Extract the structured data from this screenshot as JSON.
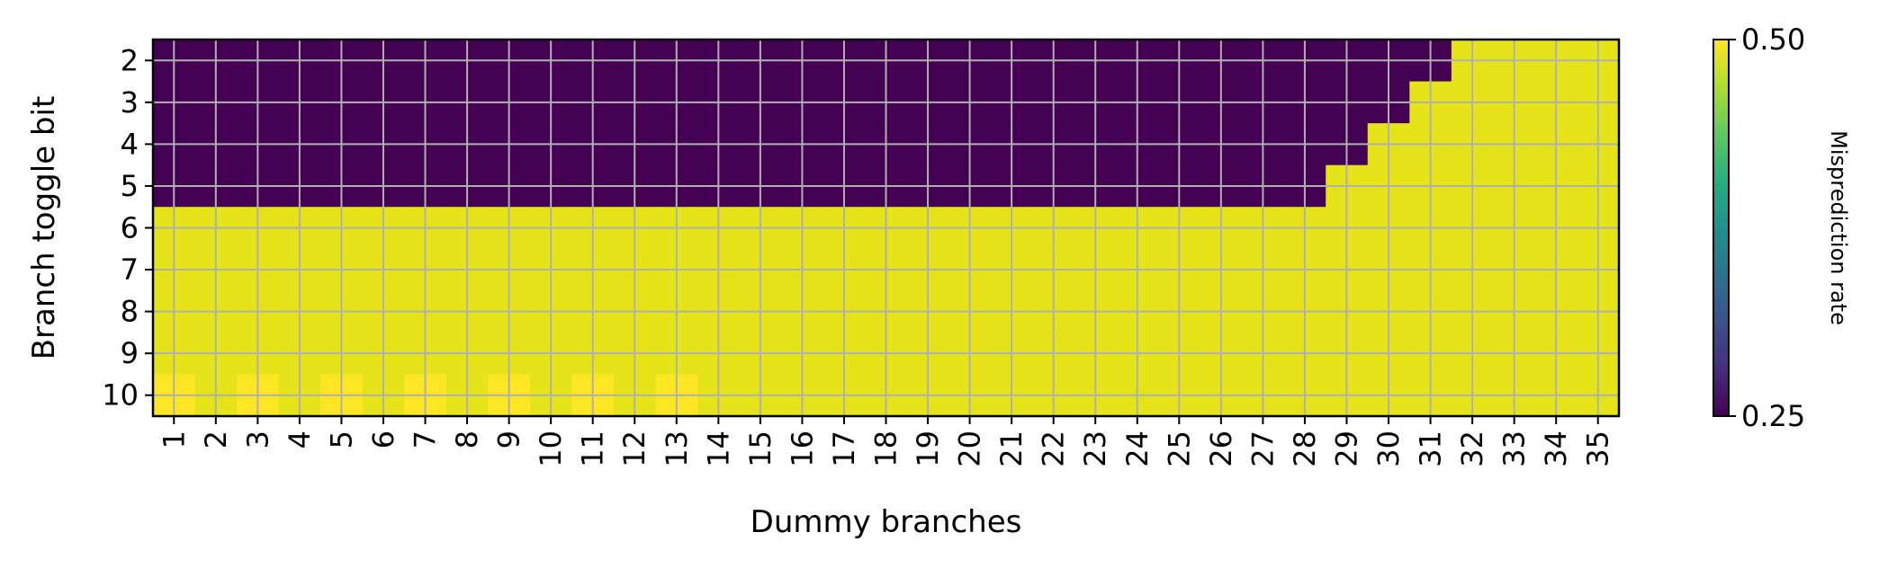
{
  "chart_data": {
    "type": "heatmap",
    "title": "",
    "xlabel": "Dummy branches",
    "ylabel": "Branch toggle bit",
    "x": [
      1,
      2,
      3,
      4,
      5,
      6,
      7,
      8,
      9,
      10,
      11,
      12,
      13,
      14,
      15,
      16,
      17,
      18,
      19,
      20,
      21,
      22,
      23,
      24,
      25,
      26,
      27,
      28,
      29,
      30,
      31,
      32,
      33,
      34,
      35
    ],
    "y": [
      2,
      3,
      4,
      5,
      6,
      7,
      8,
      9,
      10
    ],
    "z": [
      [
        0.25,
        0.25,
        0.25,
        0.25,
        0.25,
        0.25,
        0.25,
        0.25,
        0.25,
        0.25,
        0.25,
        0.25,
        0.25,
        0.25,
        0.25,
        0.25,
        0.25,
        0.25,
        0.25,
        0.25,
        0.25,
        0.25,
        0.25,
        0.25,
        0.25,
        0.25,
        0.25,
        0.25,
        0.25,
        0.25,
        0.25,
        0.5,
        0.5,
        0.5,
        0.5
      ],
      [
        0.25,
        0.25,
        0.25,
        0.25,
        0.25,
        0.25,
        0.25,
        0.25,
        0.25,
        0.25,
        0.25,
        0.25,
        0.25,
        0.25,
        0.25,
        0.25,
        0.25,
        0.25,
        0.25,
        0.25,
        0.25,
        0.25,
        0.25,
        0.25,
        0.25,
        0.25,
        0.25,
        0.25,
        0.25,
        0.25,
        0.5,
        0.5,
        0.5,
        0.5,
        0.5
      ],
      [
        0.25,
        0.25,
        0.25,
        0.25,
        0.25,
        0.25,
        0.25,
        0.25,
        0.25,
        0.25,
        0.25,
        0.25,
        0.25,
        0.25,
        0.25,
        0.25,
        0.25,
        0.25,
        0.25,
        0.25,
        0.25,
        0.25,
        0.25,
        0.25,
        0.25,
        0.25,
        0.25,
        0.25,
        0.25,
        0.5,
        0.5,
        0.5,
        0.5,
        0.5,
        0.5
      ],
      [
        0.25,
        0.25,
        0.25,
        0.25,
        0.25,
        0.25,
        0.25,
        0.25,
        0.25,
        0.25,
        0.25,
        0.25,
        0.25,
        0.25,
        0.25,
        0.25,
        0.25,
        0.25,
        0.25,
        0.25,
        0.25,
        0.25,
        0.25,
        0.25,
        0.25,
        0.25,
        0.25,
        0.25,
        0.5,
        0.5,
        0.5,
        0.5,
        0.5,
        0.5,
        0.5
      ],
      [
        0.5,
        0.5,
        0.5,
        0.5,
        0.5,
        0.5,
        0.5,
        0.5,
        0.5,
        0.5,
        0.5,
        0.5,
        0.5,
        0.5,
        0.5,
        0.5,
        0.5,
        0.5,
        0.5,
        0.5,
        0.5,
        0.5,
        0.5,
        0.5,
        0.5,
        0.5,
        0.5,
        0.5,
        0.5,
        0.5,
        0.5,
        0.5,
        0.5,
        0.5,
        0.5
      ],
      [
        0.5,
        0.5,
        0.5,
        0.5,
        0.5,
        0.5,
        0.5,
        0.5,
        0.5,
        0.5,
        0.5,
        0.5,
        0.5,
        0.5,
        0.5,
        0.5,
        0.5,
        0.5,
        0.5,
        0.5,
        0.5,
        0.5,
        0.5,
        0.5,
        0.5,
        0.5,
        0.5,
        0.5,
        0.5,
        0.5,
        0.5,
        0.5,
        0.5,
        0.5,
        0.5
      ],
      [
        0.5,
        0.5,
        0.5,
        0.5,
        0.5,
        0.5,
        0.5,
        0.5,
        0.5,
        0.5,
        0.5,
        0.5,
        0.5,
        0.5,
        0.5,
        0.5,
        0.5,
        0.5,
        0.5,
        0.5,
        0.5,
        0.5,
        0.5,
        0.5,
        0.5,
        0.5,
        0.5,
        0.5,
        0.5,
        0.5,
        0.5,
        0.5,
        0.5,
        0.5,
        0.5
      ],
      [
        0.5,
        0.5,
        0.5,
        0.5,
        0.5,
        0.5,
        0.5,
        0.5,
        0.5,
        0.5,
        0.5,
        0.5,
        0.5,
        0.5,
        0.5,
        0.5,
        0.5,
        0.5,
        0.5,
        0.5,
        0.5,
        0.5,
        0.5,
        0.5,
        0.5,
        0.5,
        0.5,
        0.5,
        0.5,
        0.5,
        0.5,
        0.5,
        0.5,
        0.5,
        0.5
      ],
      [
        0.51,
        0.5,
        0.51,
        0.5,
        0.51,
        0.5,
        0.51,
        0.5,
        0.51,
        0.5,
        0.51,
        0.5,
        0.51,
        0.5,
        0.5,
        0.5,
        0.5,
        0.5,
        0.5,
        0.5,
        0.5,
        0.5,
        0.5,
        0.5,
        0.5,
        0.5,
        0.5,
        0.5,
        0.5,
        0.5,
        0.5,
        0.5,
        0.5,
        0.5,
        0.5
      ]
    ],
    "colorbar": {
      "label": "Misprediction rate",
      "range": [
        0.25,
        0.5
      ],
      "ticks": [
        "0.25",
        "0.50"
      ],
      "colormap": "viridis"
    },
    "grid": true
  }
}
